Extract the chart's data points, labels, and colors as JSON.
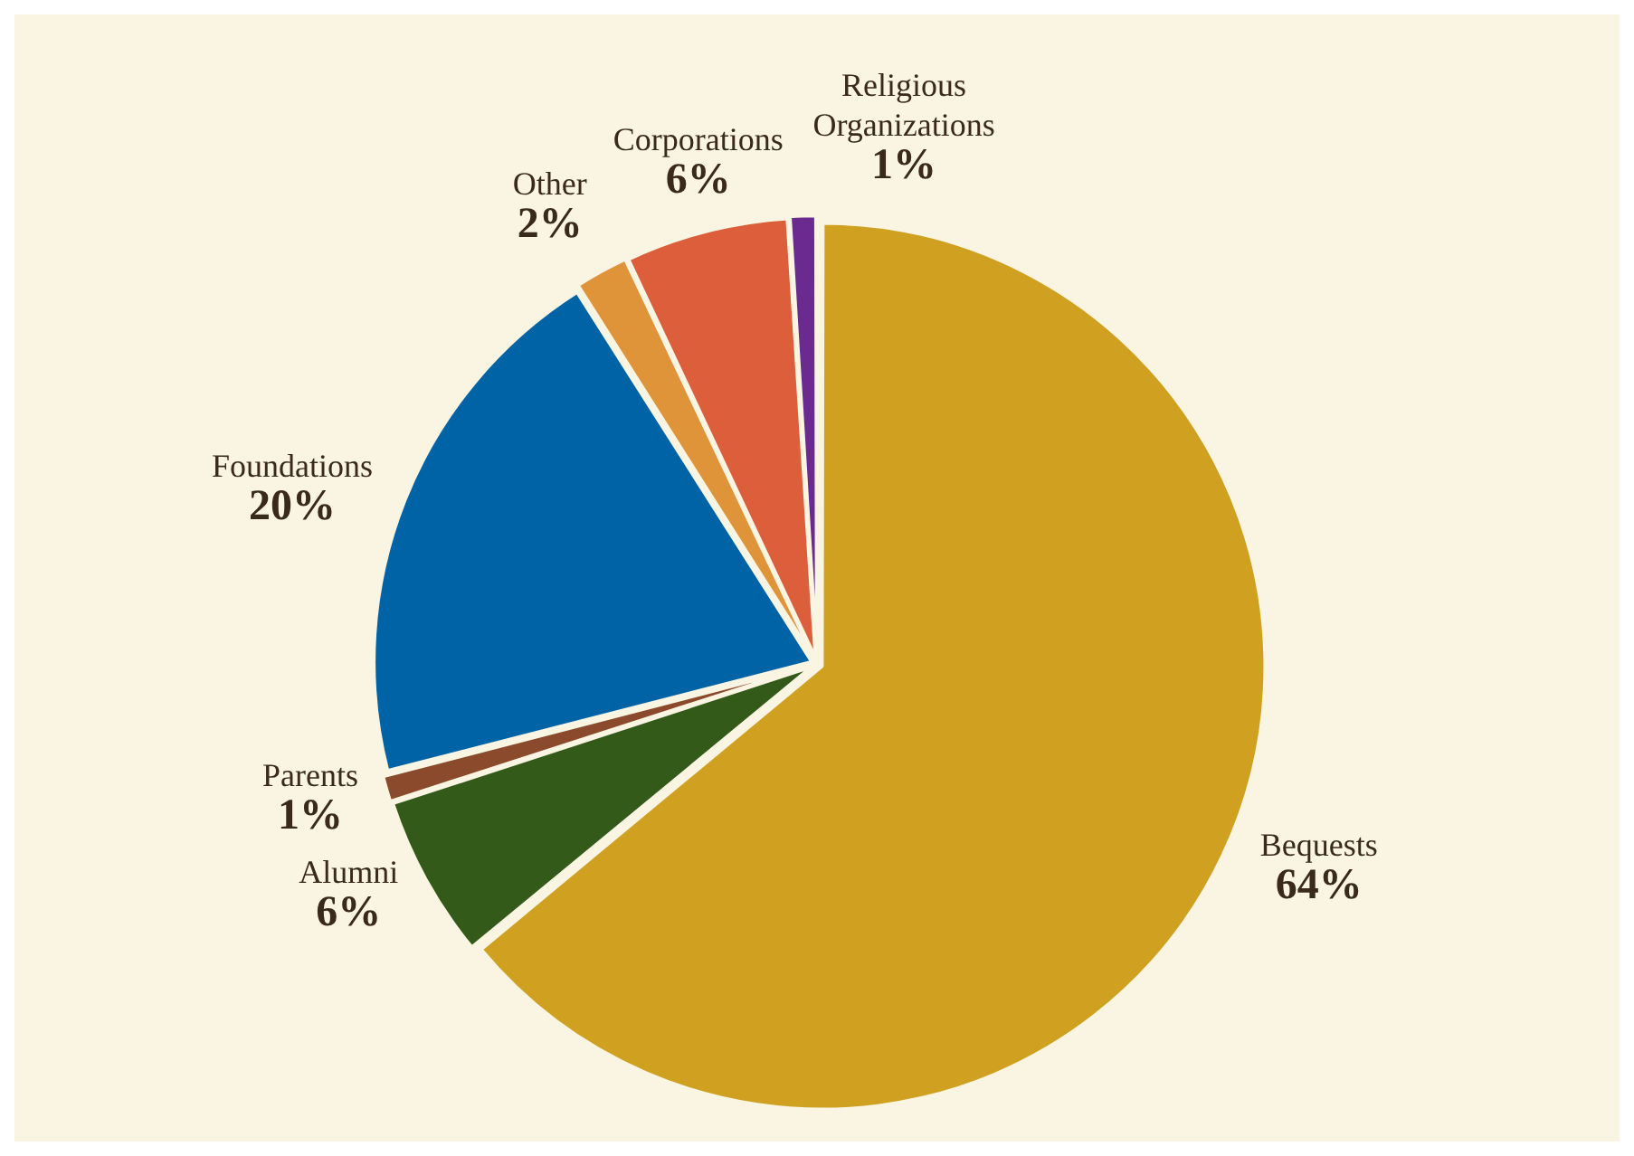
{
  "chart_data": {
    "type": "pie",
    "categories": [
      "Bequests",
      "Alumni",
      "Parents",
      "Foundations",
      "Other",
      "Corporations",
      "Religious Organizations"
    ],
    "values": [
      64,
      6,
      1,
      20,
      2,
      6,
      1
    ],
    "value_labels": [
      "64%",
      "6%",
      "1%",
      "20%",
      "2%",
      "6%",
      "1%"
    ],
    "colors": [
      "#d0a020",
      "#345a1a",
      "#8b4a2b",
      "#0063a6",
      "#e0943a",
      "#dc5e3a",
      "#6a2a90"
    ],
    "legend": false
  }
}
